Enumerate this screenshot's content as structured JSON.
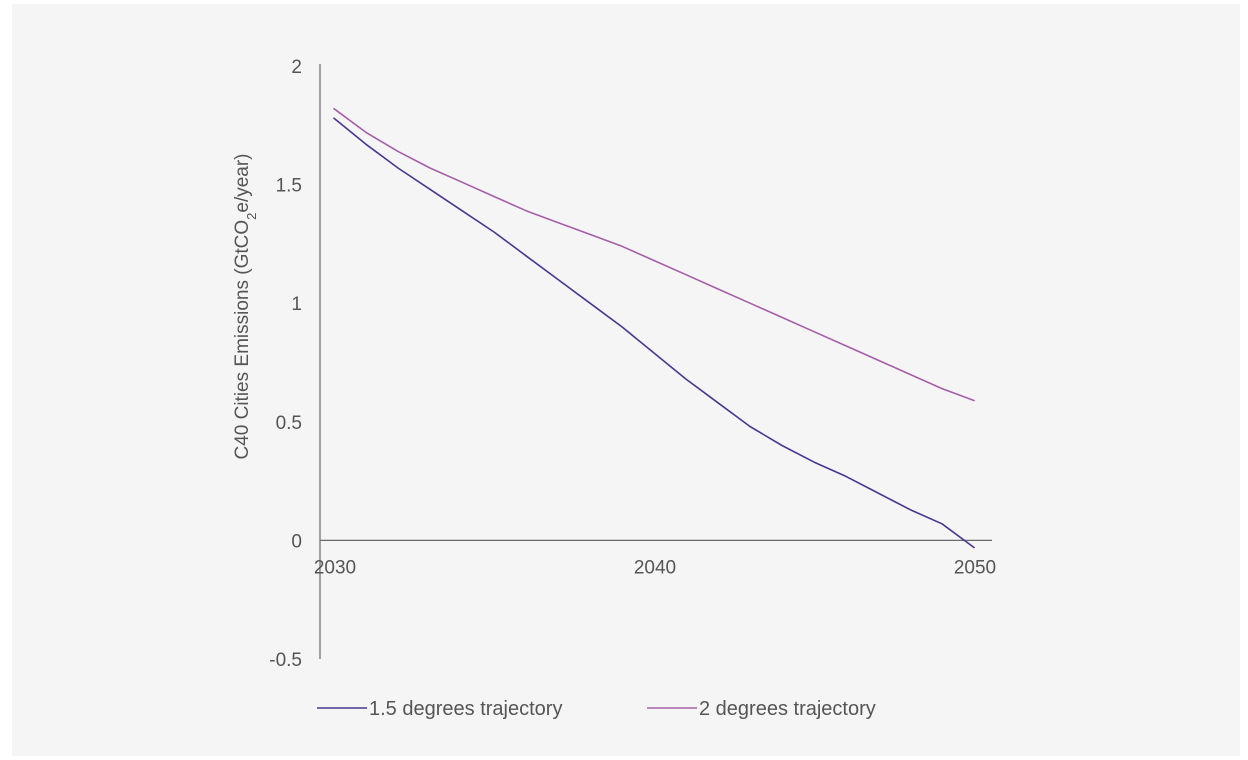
{
  "chart_data": {
    "type": "line",
    "title": "",
    "ylabel": "C40 Cities Emissions (GtCO2e/year)",
    "ylabel_parts": {
      "pre": "C40 Cities Emissions (GtCO",
      "sub": "2",
      "post": "e/year)"
    },
    "xlabel": "",
    "xlim": [
      2030,
      2050
    ],
    "ylim": [
      -0.5,
      2
    ],
    "x_ticks": [
      2030,
      2040,
      2050
    ],
    "x_tick_labels": [
      "2030",
      "2040",
      "2050"
    ],
    "y_ticks": [
      2,
      1.5,
      1,
      0.5,
      0,
      -0.5
    ],
    "y_tick_labels": [
      "2",
      "1.5",
      "1",
      "0.5",
      "0",
      "-0.5"
    ],
    "grid": false,
    "legend_position": "bottom",
    "series": [
      {
        "name": "1.5 degrees trajectory",
        "color": "#4a3690",
        "points": [
          [
            2030,
            1.78
          ],
          [
            2031,
            1.67
          ],
          [
            2032,
            1.57
          ],
          [
            2033,
            1.48
          ],
          [
            2034,
            1.39
          ],
          [
            2035,
            1.3
          ],
          [
            2036,
            1.2
          ],
          [
            2037,
            1.1
          ],
          [
            2038,
            1.0
          ],
          [
            2039,
            0.9
          ],
          [
            2040,
            0.79
          ],
          [
            2041,
            0.68
          ],
          [
            2042,
            0.58
          ],
          [
            2043,
            0.48
          ],
          [
            2044,
            0.4
          ],
          [
            2045,
            0.33
          ],
          [
            2046,
            0.27
          ],
          [
            2047,
            0.2
          ],
          [
            2048,
            0.13
          ],
          [
            2049,
            0.07
          ],
          [
            2050,
            -0.03
          ]
        ]
      },
      {
        "name": "2 degrees trajectory",
        "color": "#a65ea8",
        "points": [
          [
            2030,
            1.82
          ],
          [
            2031,
            1.72
          ],
          [
            2032,
            1.64
          ],
          [
            2033,
            1.57
          ],
          [
            2034,
            1.51
          ],
          [
            2035,
            1.45
          ],
          [
            2036,
            1.39
          ],
          [
            2037,
            1.34
          ],
          [
            2038,
            1.29
          ],
          [
            2039,
            1.24
          ],
          [
            2040,
            1.18
          ],
          [
            2041,
            1.12
          ],
          [
            2042,
            1.06
          ],
          [
            2043,
            1.0
          ],
          [
            2044,
            0.94
          ],
          [
            2045,
            0.88
          ],
          [
            2046,
            0.82
          ],
          [
            2047,
            0.76
          ],
          [
            2048,
            0.7
          ],
          [
            2049,
            0.64
          ],
          [
            2050,
            0.59
          ]
        ]
      }
    ]
  }
}
